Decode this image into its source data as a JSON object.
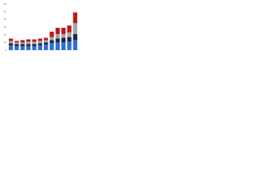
{
  "chart_data": {
    "type": "stacked-bar",
    "categories": [
      null,
      null,
      null,
      null,
      null,
      null,
      null,
      null,
      null,
      null,
      null,
      null
    ],
    "series": [
      {
        "color": "#2f6fd6",
        "values": [
          6,
          5,
          5,
          5,
          5,
          6,
          7,
          9,
          10,
          10,
          11,
          13
        ]
      },
      {
        "color": "#1c2a48",
        "values": [
          3,
          3,
          3,
          3,
          3,
          3,
          3,
          4,
          5,
          6,
          6,
          8
        ]
      },
      {
        "color": "#a6a6a6",
        "values": [
          3,
          2,
          2,
          3,
          3,
          3,
          3,
          4,
          6,
          5,
          6,
          14
        ]
      },
      {
        "color": "#c0171f",
        "values": [
          3,
          2,
          3,
          3,
          3,
          3,
          3,
          7,
          8,
          8,
          9,
          14
        ]
      }
    ],
    "ylim": [
      0,
      60
    ],
    "yticks": [
      0,
      10,
      20,
      30,
      40,
      50,
      60
    ],
    "grid": true
  }
}
